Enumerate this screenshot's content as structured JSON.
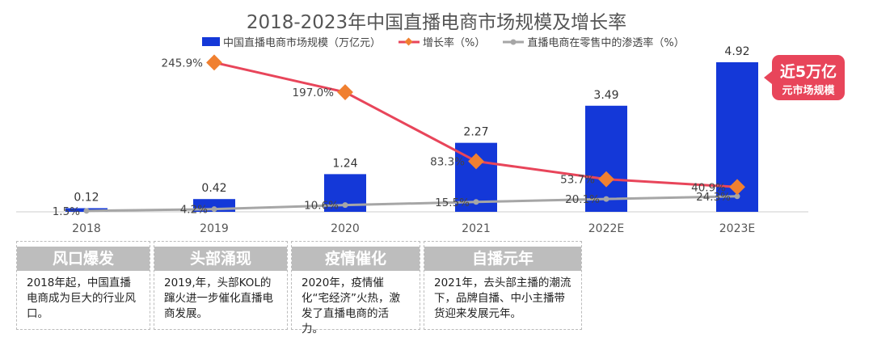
{
  "chart_data": {
    "type": "bar+line",
    "title": "2018-2023年中国直播电商市场规模及增长率",
    "categories": [
      "2018",
      "2019",
      "2020",
      "2021",
      "2022E",
      "2023E"
    ],
    "series": [
      {
        "name": "中国直播电商市场规模（万亿元）",
        "type": "bar",
        "color": "#1438d8",
        "values": [
          0.12,
          0.42,
          1.24,
          2.27,
          3.49,
          4.92
        ],
        "labels": [
          "0.12",
          "0.42",
          "1.24",
          "2.27",
          "3.49",
          "4.92"
        ]
      },
      {
        "name": "增长率（%）",
        "type": "line",
        "color": "#e8455a",
        "marker": "diamond",
        "marker_color": "#f08030",
        "values": [
          null,
          245.9,
          197.0,
          83.3,
          53.7,
          40.9
        ],
        "labels": [
          "",
          "245.9%",
          "197.0%",
          "83.3%",
          "53.7%",
          "40.9%"
        ]
      },
      {
        "name": "直播电商在零售中的渗透率（%）",
        "type": "line",
        "color": "#a6a6a6",
        "marker": "circle",
        "values": [
          1.5,
          4.2,
          10.6,
          15.5,
          20.1,
          24.3
        ],
        "labels": [
          "1.5%",
          "4.2%",
          "10.6%",
          "15.5%",
          "20.1%",
          "24.3%"
        ]
      }
    ],
    "grid": false,
    "legend": "top"
  },
  "callout": {
    "line1": "近5万亿",
    "line2": "元市场规模"
  },
  "stages": [
    {
      "title": "风口爆发",
      "text": "2018年起，中国直播电商成为巨大的行业风口。"
    },
    {
      "title": "头部涌现",
      "text": "2019,年，头部KOL的蹿火进一步催化直播电商发展。"
    },
    {
      "title": "疫情催化",
      "text": "2020年，疫情催化“宅经济”火热，激发了直播电商的活力。"
    },
    {
      "title": "自播元年",
      "text": "2021年，去头部主播的潮流下，品牌自播、中小主播带货迎来发展元年。"
    }
  ]
}
